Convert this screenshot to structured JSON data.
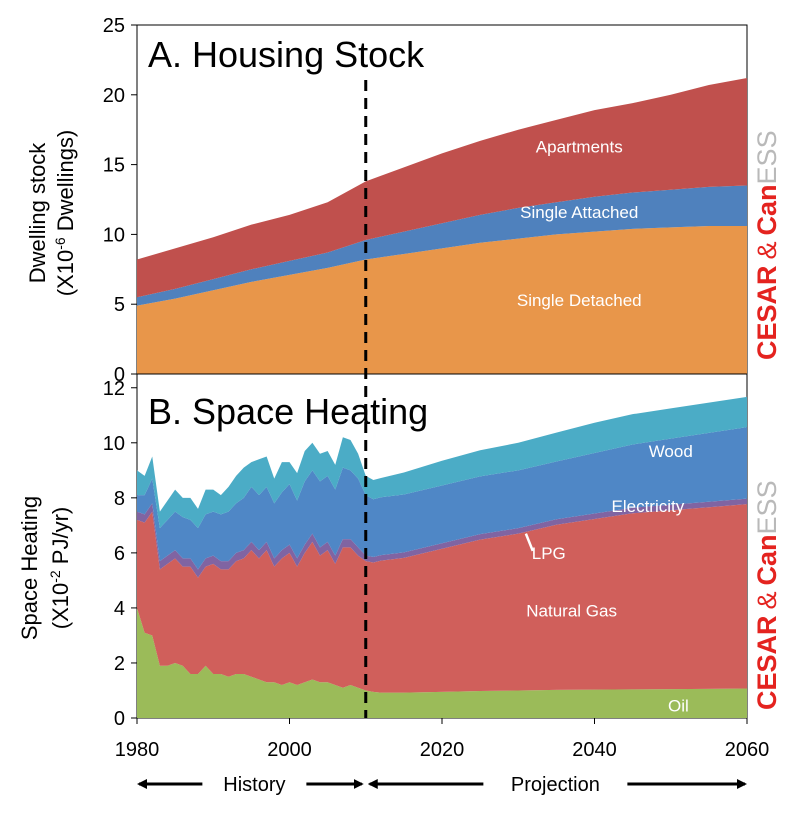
{
  "chart_data": [
    {
      "type": "area",
      "stacked": true,
      "title": "A. Housing Stock",
      "ylabel": "Dwelling stock",
      "ylabel_unit": "(X10-6 Dwellings)",
      "ylabel_unit_parts": {
        "before": "(X10",
        "sup": "-6",
        "after": " Dwellings)"
      },
      "xlim": [
        1980,
        2060
      ],
      "ylim": [
        0,
        25
      ],
      "yticks": [
        "0",
        "5",
        "10",
        "15",
        "20",
        "25"
      ],
      "x": [
        1980,
        1985,
        1990,
        1995,
        2000,
        2005,
        2010,
        2015,
        2020,
        2025,
        2030,
        2035,
        2040,
        2045,
        2050,
        2055,
        2060
      ],
      "series": [
        {
          "name": "Single Detached",
          "color": "#e8964a",
          "values": [
            4.9,
            5.4,
            6.0,
            6.6,
            7.1,
            7.6,
            8.2,
            8.6,
            9.0,
            9.4,
            9.7,
            10.0,
            10.2,
            10.4,
            10.5,
            10.6,
            10.6
          ]
        },
        {
          "name": "Single Attached",
          "color": "#4f81bd",
          "values": [
            0.6,
            0.7,
            0.8,
            0.9,
            1.0,
            1.1,
            1.4,
            1.6,
            1.8,
            2.0,
            2.2,
            2.3,
            2.5,
            2.6,
            2.7,
            2.8,
            2.9
          ]
        },
        {
          "name": "Apartments",
          "color": "#c0504d",
          "values": [
            2.7,
            2.9,
            3.0,
            3.2,
            3.3,
            3.6,
            4.2,
            4.6,
            5.0,
            5.3,
            5.6,
            5.9,
            6.2,
            6.4,
            6.8,
            7.3,
            7.7
          ]
        }
      ],
      "divider_x": 2010
    },
    {
      "type": "area",
      "stacked": true,
      "title": "B. Space Heating",
      "ylabel": "Space Heating",
      "ylabel_unit": "(X10-2 PJ/yr)",
      "ylabel_unit_parts": {
        "before": "(X10",
        "sup": "-2",
        "after": " PJ/yr)"
      },
      "xlim": [
        1980,
        2060
      ],
      "ylim": [
        0,
        12.5
      ],
      "yticks": [
        "0",
        "2",
        "4",
        "6",
        "8",
        "10",
        "12"
      ],
      "xticks": [
        "1980",
        "2000",
        "2020",
        "2040",
        "2060"
      ],
      "x": [
        1980,
        1981,
        1982,
        1983,
        1984,
        1985,
        1986,
        1987,
        1988,
        1989,
        1990,
        1991,
        1992,
        1993,
        1994,
        1995,
        1996,
        1997,
        1998,
        1999,
        2000,
        2001,
        2002,
        2003,
        2004,
        2005,
        2006,
        2007,
        2008,
        2009,
        2010,
        2011,
        2012,
        2015,
        2020,
        2025,
        2030,
        2035,
        2040,
        2045,
        2050,
        2055,
        2060
      ],
      "series": [
        {
          "name": "Oil",
          "color": "#9bbb59",
          "values": [
            4.0,
            3.1,
            3.0,
            1.9,
            1.9,
            2.0,
            1.9,
            1.6,
            1.6,
            1.9,
            1.6,
            1.6,
            1.5,
            1.6,
            1.6,
            1.5,
            1.4,
            1.3,
            1.3,
            1.2,
            1.3,
            1.2,
            1.3,
            1.4,
            1.3,
            1.3,
            1.2,
            1.1,
            1.2,
            1.1,
            1.0,
            0.95,
            0.92,
            0.92,
            0.95,
            0.98,
            1.0,
            1.02,
            1.03,
            1.04,
            1.05,
            1.06,
            1.07
          ]
        },
        {
          "name": "Natural Gas",
          "color": "#d05f5b",
          "values": [
            3.2,
            4.0,
            4.5,
            3.5,
            3.7,
            3.8,
            3.6,
            3.9,
            3.5,
            3.6,
            4.0,
            3.8,
            3.9,
            4.1,
            4.2,
            4.6,
            4.4,
            4.8,
            4.2,
            4.6,
            4.7,
            4.3,
            4.7,
            5.0,
            4.6,
            4.8,
            4.4,
            5.1,
            5.0,
            4.8,
            4.7,
            4.7,
            4.8,
            4.9,
            5.2,
            5.5,
            5.7,
            6.0,
            6.2,
            6.4,
            6.5,
            6.6,
            6.7
          ]
        },
        {
          "name": "LPG",
          "color": "#8064a2",
          "values": [
            0.3,
            0.3,
            0.3,
            0.3,
            0.3,
            0.3,
            0.3,
            0.3,
            0.3,
            0.3,
            0.3,
            0.3,
            0.3,
            0.3,
            0.3,
            0.3,
            0.3,
            0.3,
            0.3,
            0.3,
            0.3,
            0.3,
            0.3,
            0.3,
            0.3,
            0.3,
            0.3,
            0.3,
            0.3,
            0.3,
            0.2,
            0.2,
            0.2,
            0.2,
            0.2,
            0.2,
            0.2,
            0.2,
            0.2,
            0.2,
            0.2,
            0.2,
            0.2
          ]
        },
        {
          "name": "Electricity",
          "color": "#4f87c6",
          "values": [
            0.6,
            0.7,
            0.9,
            1.2,
            1.3,
            1.4,
            1.5,
            1.4,
            1.5,
            1.6,
            1.6,
            1.7,
            1.8,
            1.8,
            1.9,
            2.0,
            2.0,
            2.0,
            2.0,
            2.1,
            2.2,
            2.1,
            2.3,
            2.3,
            2.4,
            2.4,
            2.4,
            2.6,
            2.5,
            2.5,
            2.2,
            2.1,
            2.1,
            2.1,
            2.1,
            2.1,
            2.1,
            2.1,
            2.2,
            2.3,
            2.4,
            2.5,
            2.6
          ]
        },
        {
          "name": "Wood",
          "color": "#4bacc6",
          "values": [
            0.9,
            0.7,
            0.8,
            0.6,
            0.7,
            0.8,
            0.7,
            0.8,
            0.7,
            0.9,
            0.8,
            0.7,
            0.9,
            1.0,
            1.1,
            0.9,
            1.3,
            1.1,
            0.9,
            1.1,
            0.8,
            1.0,
            1.1,
            1.0,
            1.0,
            0.9,
            0.9,
            1.1,
            1.1,
            0.9,
            0.7,
            0.7,
            0.7,
            0.8,
            0.9,
            0.95,
            1.0,
            1.05,
            1.1,
            1.1,
            1.1,
            1.1,
            1.1
          ]
        }
      ],
      "divider_x": 2010
    }
  ],
  "series_labels": {
    "top": [
      {
        "text": "Apartments",
        "x": 2038,
        "y": 16.3
      },
      {
        "text": "Single Attached",
        "x": 2038,
        "y": 11.6
      },
      {
        "text": "Single Detached",
        "x": 2038,
        "y": 5.3
      }
    ],
    "bottom": [
      {
        "text": "Wood",
        "x": 2050,
        "y": 9.7
      },
      {
        "text": "Electricity",
        "x": 2047,
        "y": 7.7
      },
      {
        "text": "LPG",
        "x": 2034,
        "y": 6.0,
        "pointer_to": {
          "x": 2031,
          "y": 6.7
        }
      },
      {
        "text": "Natural Gas",
        "x": 2037,
        "y": 3.9
      },
      {
        "text": "Oil",
        "x": 2051,
        "y": 0.45
      }
    ]
  },
  "timeline": {
    "history": "History",
    "projection": "Projection",
    "history_range": [
      1980,
      2010
    ],
    "projection_range": [
      2010,
      2060
    ]
  },
  "watermark": {
    "brand1": "CESAR",
    "amp": "&",
    "brand2_red": "Can",
    "brand2_grey": "ESS",
    "color": "#e4231f"
  }
}
